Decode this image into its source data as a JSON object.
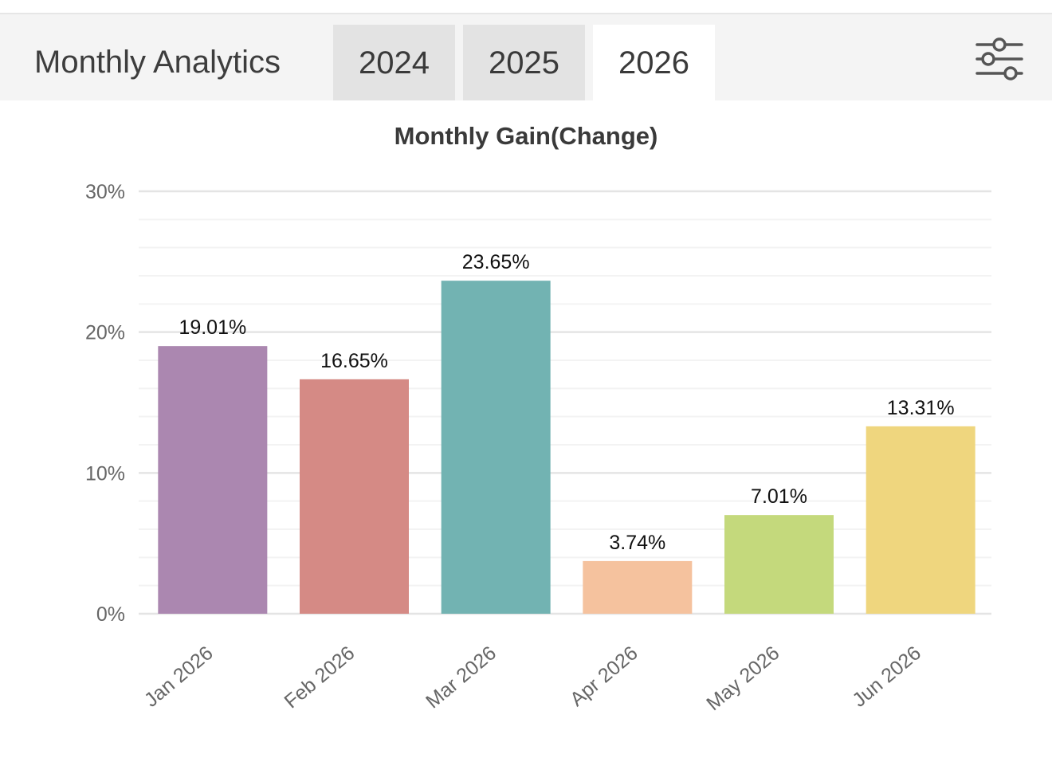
{
  "header": {
    "title": "Monthly Analytics",
    "tabs": [
      {
        "label": "2024",
        "active": false
      },
      {
        "label": "2025",
        "active": false
      },
      {
        "label": "2026",
        "active": true
      }
    ],
    "filter_icon": "sliders-icon"
  },
  "colors": {
    "header_bg": "#f4f4f4",
    "tab_bg": "#e3e3e3",
    "tab_active_bg": "#ffffff",
    "grid_major": "#e4e4e4",
    "grid_minor": "#f3f3f3"
  },
  "chart_data": {
    "type": "bar",
    "title": "Monthly Gain(Change)",
    "xlabel": "",
    "ylabel": "",
    "categories": [
      "Jan 2026",
      "Feb 2026",
      "Mar 2026",
      "Apr 2026",
      "May 2026",
      "Jun 2026"
    ],
    "values": [
      19.01,
      16.65,
      23.65,
      3.74,
      7.01,
      13.31
    ],
    "data_labels": [
      "19.01%",
      "16.65%",
      "23.65%",
      "3.74%",
      "7.01%",
      "13.31%"
    ],
    "bar_colors": [
      "#ab87b0",
      "#d58a85",
      "#72b3b2",
      "#f5c29e",
      "#c4d97c",
      "#efd67e"
    ],
    "ylim": [
      0,
      30
    ],
    "yticks": [
      0,
      10,
      20,
      30
    ],
    "ytick_labels": [
      "0%",
      "10%",
      "20%",
      "30%"
    ],
    "minor_grid": true,
    "legend": "none"
  }
}
